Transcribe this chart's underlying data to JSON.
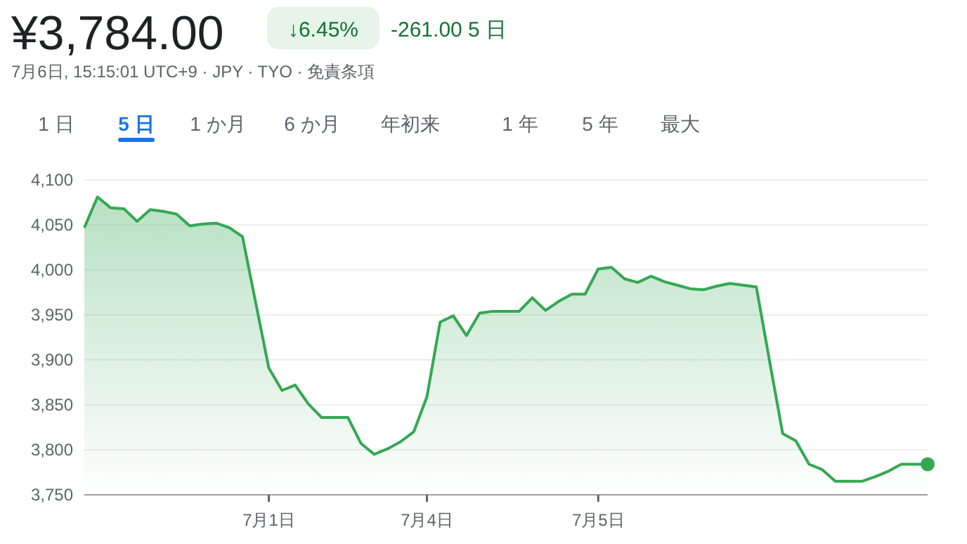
{
  "chart_data": {
    "type": "area",
    "title": "¥3,784.00",
    "subtitle": "7月6日, 15:15:01 UTC+9 · JPY · TYO · 免責条項",
    "annotations": [
      "↓6.45%",
      "-261.00 5 日",
      "1 日",
      "5 日",
      "1 か月",
      "6 か月",
      "年初来",
      "1 年",
      "5 年",
      "最大"
    ],
    "categories": [
      null,
      null,
      null,
      null,
      null,
      null,
      null,
      null,
      null,
      null,
      null,
      null,
      null,
      null,
      "7月1日",
      null,
      null,
      null,
      null,
      null,
      null,
      null,
      null,
      null,
      null,
      null,
      "7月4日",
      null,
      null,
      null,
      null,
      null,
      null,
      null,
      null,
      null,
      null,
      null,
      null,
      "7月5日",
      null,
      null,
      null,
      null,
      null,
      null,
      null,
      null,
      null,
      null,
      null,
      null,
      null,
      null,
      null,
      null,
      null,
      null,
      null,
      null,
      null,
      null,
      null,
      null,
      null
    ],
    "series": [
      {
        "type": "area",
        "color": "#34a853",
        "values": [
          4047,
          4081,
          4069,
          4068,
          4054,
          4067,
          4065,
          4062,
          4049,
          4051,
          4052,
          4047,
          4037,
          3964,
          3891,
          3866,
          3872,
          3851,
          3836,
          3836,
          3836,
          3807,
          3795,
          3801,
          3809,
          3820,
          3859,
          3942,
          3949,
          3927,
          3952,
          3954,
          3954,
          3954,
          3969,
          3955,
          3965,
          3973,
          3973,
          4001,
          4003,
          3990,
          3986,
          3993,
          3987,
          3983,
          3979,
          3978,
          3982,
          3985,
          3983,
          3981,
          3899,
          3818,
          3810,
          3784,
          3778,
          3765,
          3765,
          3765,
          3770,
          3776,
          3784,
          3784,
          3784
        ]
      },
      {
        "type": "scatter",
        "color": "#34a853",
        "values": [
          null,
          null,
          null,
          null,
          null,
          null,
          null,
          null,
          null,
          null,
          null,
          null,
          null,
          null,
          null,
          null,
          null,
          null,
          null,
          null,
          null,
          null,
          null,
          null,
          null,
          null,
          null,
          null,
          null,
          null,
          null,
          null,
          null,
          null,
          null,
          null,
          null,
          null,
          null,
          null,
          null,
          null,
          null,
          null,
          null,
          null,
          null,
          null,
          null,
          null,
          null,
          null,
          null,
          null,
          null,
          null,
          null,
          null,
          null,
          null,
          null,
          null,
          null,
          null,
          3784
        ]
      }
    ],
    "ylim": [
      3750,
      4100
    ],
    "yticks": [
      {
        "value": 3750,
        "label": "3,750"
      },
      {
        "value": 3800,
        "label": "3,800"
      },
      {
        "value": 3850,
        "label": "3,850"
      },
      {
        "value": 3900,
        "label": "3,900"
      },
      {
        "value": 3950,
        "label": "3,950"
      },
      {
        "value": 4000,
        "label": "4,000"
      },
      {
        "value": 4050,
        "label": "4,050"
      },
      {
        "value": 4100,
        "label": "4,100"
      }
    ],
    "grid": "y"
  }
}
